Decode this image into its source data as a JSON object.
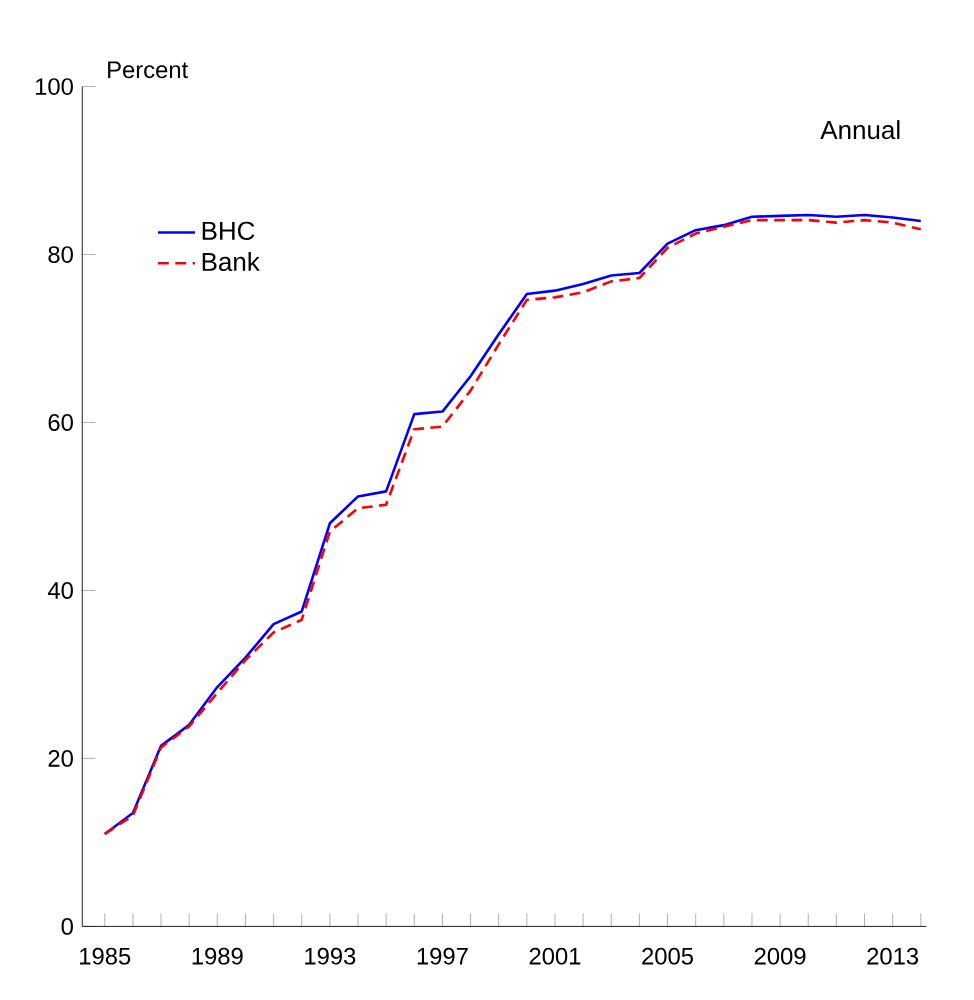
{
  "chart_data": {
    "type": "line",
    "ylabel": "Percent",
    "annotations": [
      "Annual"
    ],
    "x": [
      1985,
      1986,
      1987,
      1988,
      1989,
      1990,
      1991,
      1992,
      1993,
      1994,
      1995,
      1996,
      1997,
      1998,
      1999,
      2000,
      2001,
      2002,
      2003,
      2004,
      2005,
      2006,
      2007,
      2008,
      2009,
      2010,
      2011,
      2012,
      2013,
      2014
    ],
    "series": [
      {
        "name": "BHC",
        "color": "#0000ff",
        "line_style": "solid",
        "values": [
          11,
          13.5,
          21.5,
          24,
          28.5,
          32,
          36,
          37.5,
          48,
          51.2,
          51.8,
          61,
          61.3,
          65.5,
          70.5,
          75.3,
          75.7,
          76.5,
          77.5,
          77.8,
          81.3,
          82.9,
          83.5,
          84.5,
          84.6,
          84.7,
          84.5,
          84.7,
          84.4,
          84.0
        ]
      },
      {
        "name": "Bank",
        "color": "#ff0000",
        "line_style": "dashed",
        "values": [
          11,
          13.2,
          21.3,
          23.8,
          27.8,
          31.7,
          35,
          36.5,
          47,
          49.8,
          50.2,
          59.2,
          59.5,
          63.8,
          69.3,
          74.6,
          74.9,
          75.5,
          76.8,
          77.2,
          80.8,
          82.5,
          83.3,
          84.1,
          84.1,
          84.1,
          83.8,
          84.1,
          83.8,
          83.0
        ]
      }
    ],
    "xlim": [
      1984.2,
      2014.2
    ],
    "ylim": [
      0,
      100
    ],
    "xticks": [
      1985,
      {
        "value": 1986,
        "label": null
      },
      {
        "value": 1987,
        "label": null
      },
      {
        "value": 1988,
        "label": null
      },
      1989,
      {
        "value": 1990,
        "label": null
      },
      {
        "value": 1991,
        "label": null
      },
      {
        "value": 1992,
        "label": null
      },
      1993,
      {
        "value": 1994,
        "label": null
      },
      {
        "value": 1995,
        "label": null
      },
      {
        "value": 1996,
        "label": null
      },
      1997,
      {
        "value": 1998,
        "label": null
      },
      {
        "value": 1999,
        "label": null
      },
      {
        "value": 2000,
        "label": null
      },
      2001,
      {
        "value": 2002,
        "label": null
      },
      {
        "value": 2003,
        "label": null
      },
      {
        "value": 2004,
        "label": null
      },
      2005,
      {
        "value": 2006,
        "label": null
      },
      {
        "value": 2007,
        "label": null
      },
      {
        "value": 2008,
        "label": null
      },
      2009,
      {
        "value": 2010,
        "label": null
      },
      {
        "value": 2011,
        "label": null
      },
      {
        "value": 2012,
        "label": null
      },
      2013,
      {
        "value": 2014,
        "label": null
      }
    ],
    "yticks": [
      0,
      20,
      40,
      60,
      80,
      100
    ],
    "legend": "top left",
    "grid": false,
    "marker": "none"
  }
}
